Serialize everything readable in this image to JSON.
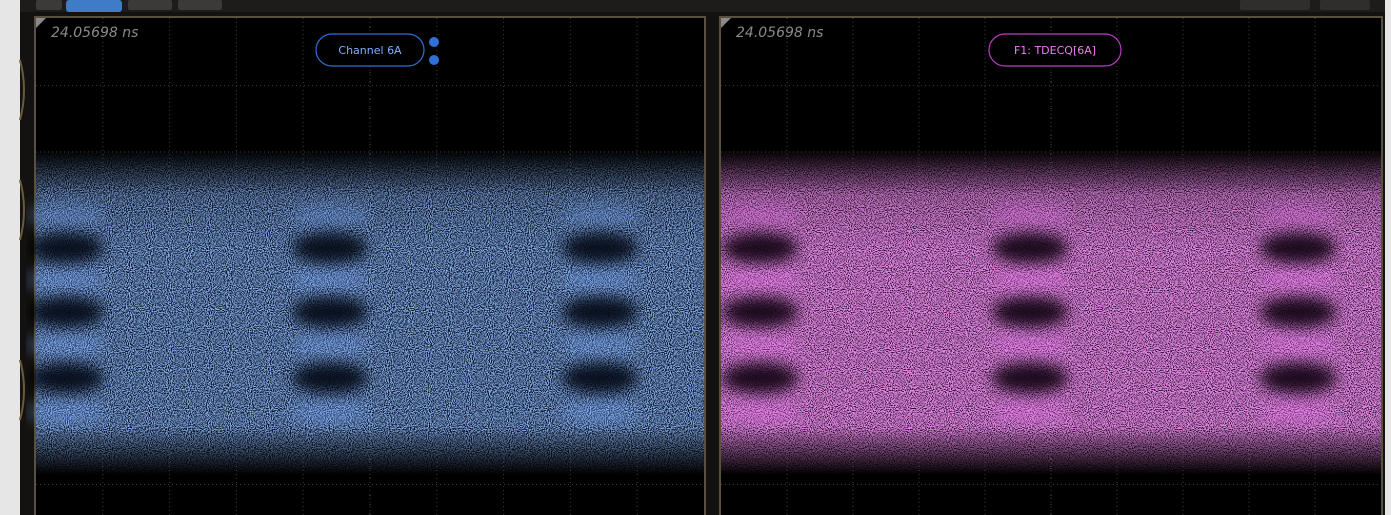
{
  "panels": [
    {
      "timestamp": "24.05698 ns",
      "label": "Channel 6A"
    },
    {
      "timestamp": "24.05698 ns",
      "label": "F1: TDECQ[6A]"
    }
  ]
}
